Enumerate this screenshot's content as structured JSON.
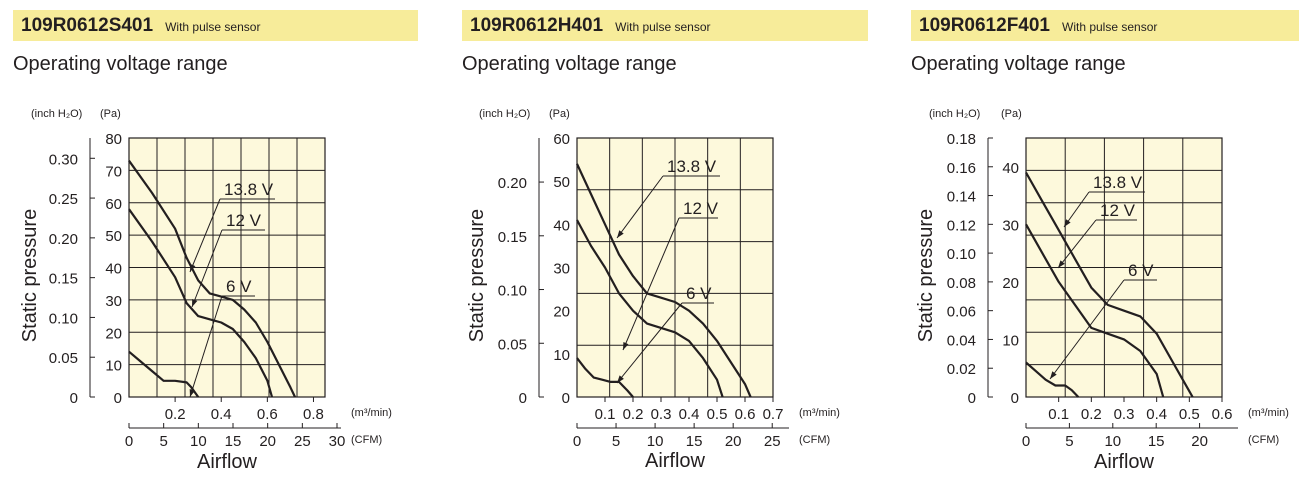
{
  "header": {
    "panels": [
      {
        "model": "109R0612S401",
        "note": "With pulse sensor",
        "subtitle": "Operating voltage range"
      },
      {
        "model": "109R0612H401",
        "note": "With pulse sensor",
        "subtitle": "Operating voltage range"
      },
      {
        "model": "109R0612F401",
        "note": "With pulse sensor",
        "subtitle": "Operating voltage range"
      }
    ]
  },
  "colors": {
    "banner": "#f7ec9a",
    "plot_background": "#fdf9dc",
    "ink": "#231f20"
  },
  "chart_data": [
    {
      "type": "line",
      "title": "109R0612S401",
      "xlabel": "Airflow",
      "ylabel": "Static pressure",
      "unit_pressure_inch": "(inch H₂O)",
      "unit_pressure_pa": "(Pa)",
      "unit_flow_m3": "(m³/min)",
      "unit_flow_cfm": "(CFM)",
      "xlim_m3min": [
        0,
        0.85
      ],
      "ylim_pa": [
        0,
        80
      ],
      "x_ticks_m3min": [
        0.2,
        0.4,
        0.6,
        0.8
      ],
      "x_ticks_cfm": [
        0,
        5,
        10,
        15,
        20,
        25,
        30
      ],
      "y_ticks_pa": [
        0,
        10,
        20,
        30,
        40,
        50,
        60,
        70,
        80
      ],
      "y_ticks_inch": [
        "0",
        "0.05",
        "0.10",
        "0.15",
        "0.20",
        "0.25",
        "0.30"
      ],
      "grid": true,
      "series": [
        {
          "name": "13.8 V",
          "x": [
            0,
            0.1,
            0.2,
            0.25,
            0.3,
            0.35,
            0.4,
            0.45,
            0.5,
            0.55,
            0.6,
            0.65,
            0.7,
            0.72
          ],
          "y": [
            73,
            63,
            52,
            43,
            36,
            32,
            31,
            30,
            27,
            23,
            17,
            10,
            3,
            0
          ]
        },
        {
          "name": "12 V",
          "x": [
            0,
            0.1,
            0.2,
            0.25,
            0.3,
            0.35,
            0.4,
            0.45,
            0.5,
            0.55,
            0.6,
            0.62
          ],
          "y": [
            58,
            48,
            37,
            29,
            25,
            24,
            23,
            21,
            17,
            12,
            5,
            0
          ]
        },
        {
          "name": "6 V",
          "x": [
            0,
            0.05,
            0.1,
            0.15,
            0.2,
            0.25,
            0.27,
            0.3
          ],
          "y": [
            14,
            11,
            8,
            5,
            5,
            4.5,
            3,
            0
          ]
        }
      ]
    },
    {
      "type": "line",
      "title": "109R0612H401",
      "xlabel": "Airflow",
      "ylabel": "Static pressure",
      "unit_pressure_inch": "(inch H₂O)",
      "unit_pressure_pa": "(Pa)",
      "unit_flow_m3": "(m³/min)",
      "unit_flow_cfm": "(CFM)",
      "xlim_m3min": [
        0,
        0.7
      ],
      "ylim_pa": [
        0,
        60
      ],
      "x_ticks_m3min": [
        0.1,
        0.2,
        0.3,
        0.4,
        0.5,
        0.6,
        0.7
      ],
      "x_ticks_cfm": [
        0,
        5,
        10,
        15,
        20,
        25
      ],
      "y_ticks_pa": [
        0,
        10,
        20,
        30,
        40,
        50,
        60
      ],
      "y_ticks_inch": [
        "0",
        "0.05",
        "0.10",
        "0.15",
        "0.20"
      ],
      "grid": true,
      "series": [
        {
          "name": "13.8 V",
          "x": [
            0,
            0.05,
            0.1,
            0.15,
            0.2,
            0.25,
            0.3,
            0.35,
            0.4,
            0.45,
            0.5,
            0.55,
            0.6,
            0.62
          ],
          "y": [
            54,
            47,
            40,
            33,
            28,
            24,
            23,
            22,
            20,
            17,
            13,
            8,
            3,
            0
          ]
        },
        {
          "name": "12 V",
          "x": [
            0,
            0.05,
            0.1,
            0.15,
            0.2,
            0.25,
            0.3,
            0.35,
            0.4,
            0.45,
            0.5,
            0.52
          ],
          "y": [
            41,
            35,
            30,
            24,
            20,
            17,
            16,
            15,
            13,
            9,
            4,
            0
          ]
        },
        {
          "name": "6 V",
          "x": [
            0,
            0.03,
            0.06,
            0.09,
            0.12,
            0.15,
            0.18,
            0.2
          ],
          "y": [
            9,
            6.5,
            4.5,
            4,
            3.5,
            3.5,
            1.5,
            0
          ]
        }
      ]
    },
    {
      "type": "line",
      "title": "109R0612F401",
      "xlabel": "Airflow",
      "ylabel": "Static pressure",
      "unit_pressure_inch": "(inch H₂O)",
      "unit_pressure_pa": "(Pa)",
      "unit_flow_m3": "(m³/min)",
      "unit_flow_cfm": "(CFM)",
      "xlim_m3min": [
        0,
        0.6
      ],
      "ylim_pa": [
        0,
        45
      ],
      "x_ticks_m3min": [
        0.1,
        0.2,
        0.3,
        0.4,
        0.5,
        0.6
      ],
      "x_ticks_cfm": [
        0,
        5,
        10,
        15,
        20
      ],
      "y_ticks_pa": [
        0,
        10,
        20,
        30,
        40
      ],
      "y_ticks_inch": [
        "0",
        "0.02",
        "0.04",
        "0.06",
        "0.08",
        "0.10",
        "0.12",
        "0.14",
        "0.16",
        "0.18"
      ],
      "grid": true,
      "series": [
        {
          "name": "13.8 V",
          "x": [
            0,
            0.05,
            0.1,
            0.15,
            0.2,
            0.25,
            0.3,
            0.35,
            0.4,
            0.45,
            0.5,
            0.51
          ],
          "y": [
            39,
            34,
            29,
            24,
            19,
            16,
            15,
            14,
            11,
            6,
            1,
            0
          ]
        },
        {
          "name": "12 V",
          "x": [
            0,
            0.05,
            0.1,
            0.15,
            0.2,
            0.25,
            0.3,
            0.35,
            0.4,
            0.42
          ],
          "y": [
            30,
            25,
            20,
            16,
            12,
            11,
            10,
            8,
            4,
            0
          ]
        },
        {
          "name": "6 V",
          "x": [
            0,
            0.03,
            0.06,
            0.09,
            0.12,
            0.14,
            0.16
          ],
          "y": [
            6,
            4.5,
            3,
            2,
            2,
            1.2,
            0
          ]
        }
      ]
    }
  ]
}
